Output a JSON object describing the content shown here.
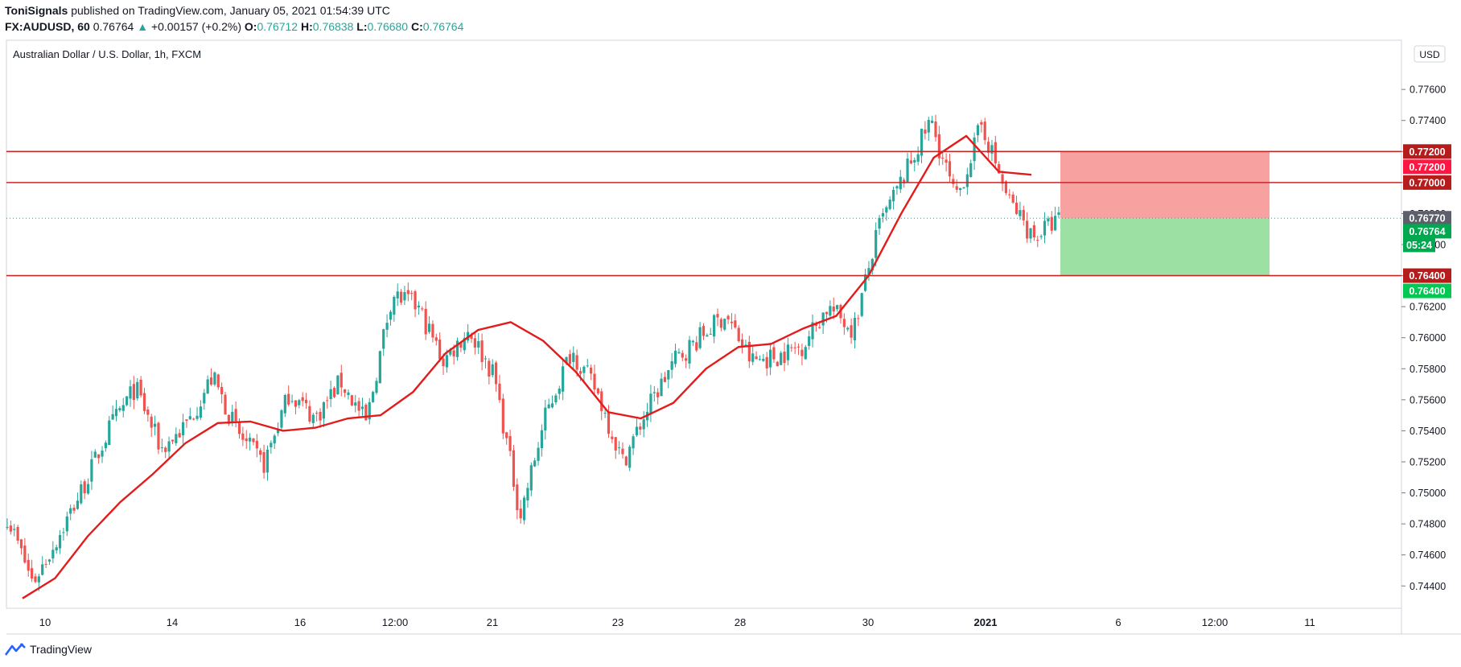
{
  "header": {
    "author": "ToniSignals",
    "published_text": "published on TradingView.com, January 05, 2021 01:54:39 UTC",
    "symbol": "FX:AUDUSD, 60",
    "last": "0.76764",
    "change_arrow": "▲",
    "change": "+0.00157 (+0.2%)",
    "o_label": "O:",
    "o_value": "0.76712",
    "h_label": "H:",
    "h_value": "0.76838",
    "l_label": "L:",
    "l_value": "0.76680",
    "c_label": "C:",
    "c_value": "0.76764"
  },
  "footer": {
    "brand": "TradingView",
    "logo_icon": "tradingview-logo-icon"
  },
  "colors": {
    "up": "#26a69a",
    "down": "#ef5350",
    "ma": "#e31b1b",
    "level_line": "#c62828",
    "stop_zone": "#f7a1a1",
    "target_zone": "#9de0a4",
    "axis_text": "#131722",
    "grid_border": "#d1d4dc"
  },
  "chart_data": {
    "type": "candlestick",
    "title": "Australian Dollar / U.S. Dollar, 1h, FXCM",
    "currency": "USD",
    "ylim": [
      0.7432,
      0.7776
    ],
    "y_ticks": [
      0.776,
      0.774,
      0.772,
      0.77,
      0.768,
      0.766,
      0.764,
      0.762,
      0.76,
      0.758,
      0.756,
      0.754,
      0.752,
      0.75,
      0.748,
      0.746,
      0.744
    ],
    "x_ticks": [
      "10",
      "14",
      "16",
      "12:00",
      "21",
      "23",
      "28",
      "30",
      "2021",
      "6",
      "12:00",
      "11"
    ],
    "x_ticks_bold": [
      "2021"
    ],
    "price_path": [
      [
        0.7485,
        0.7482
      ],
      [
        0.7442,
        0.7433
      ],
      [
        0.7472,
        0.7462
      ],
      [
        0.7505,
        0.7497
      ],
      [
        0.7542,
        0.7532
      ],
      [
        0.7568,
        0.7566
      ],
      [
        0.7528,
        0.7532
      ],
      [
        0.7544,
        0.7538
      ],
      [
        0.7575,
        0.7575
      ],
      [
        0.7538,
        0.7534
      ],
      [
        0.7518,
        0.7522
      ],
      [
        0.7565,
        0.7568
      ],
      [
        0.7548,
        0.7552
      ],
      [
        0.7572,
        0.7565
      ],
      [
        0.7545,
        0.7543
      ],
      [
        0.7628,
        0.7632
      ],
      [
        0.762,
        0.7614
      ],
      [
        0.7585,
        0.7592
      ],
      [
        0.7605,
        0.7609
      ],
      [
        0.7575,
        0.7568
      ],
      [
        0.7485,
        0.749
      ],
      [
        0.755,
        0.7558
      ],
      [
        0.7592,
        0.7596
      ],
      [
        0.7565,
        0.7556
      ],
      [
        0.752,
        0.7522
      ],
      [
        0.7555,
        0.756
      ],
      [
        0.7585,
        0.759
      ],
      [
        0.76,
        0.7602
      ],
      [
        0.7615,
        0.762
      ],
      [
        0.7585,
        0.7582
      ],
      [
        0.7588,
        0.7592
      ],
      [
        0.7595,
        0.76
      ],
      [
        0.762,
        0.7625
      ],
      [
        0.7605,
        0.7615
      ],
      [
        0.7672,
        0.768
      ],
      [
        0.7705,
        0.7698
      ],
      [
        0.774,
        0.7735
      ],
      [
        0.7688,
        0.7685
      ],
      [
        0.7738,
        0.7732
      ],
      [
        0.769,
        0.766
      ],
      [
        0.7665,
        0.767
      ],
      [
        0.7676,
        0.7676
      ]
    ],
    "ma_values": [
      0.7432,
      0.7445,
      0.7472,
      0.7494,
      0.7512,
      0.7532,
      0.7545,
      0.7546,
      0.754,
      0.7542,
      0.7548,
      0.755,
      0.7565,
      0.759,
      0.7605,
      0.761,
      0.7598,
      0.7578,
      0.7552,
      0.7548,
      0.7558,
      0.758,
      0.7594,
      0.7596,
      0.7606,
      0.7614,
      0.764,
      0.768,
      0.7716,
      0.773,
      0.7707,
      0.7705
    ],
    "levels": [
      0.772,
      0.77,
      0.764
    ],
    "current_price_line": 0.7677,
    "position": {
      "stop": 0.772,
      "entry": 0.7677,
      "target": 0.764
    },
    "price_labels": [
      {
        "text": "0.77200",
        "value": 0.772,
        "style": "level"
      },
      {
        "text": "0.77200",
        "value": 0.772,
        "style": "stop"
      },
      {
        "text": "0.77000",
        "value": 0.77,
        "style": "level"
      },
      {
        "text": "0.76770",
        "value": 0.7677,
        "style": "entry"
      },
      {
        "text": "0.76764",
        "value": 0.76764,
        "style": "last"
      },
      {
        "text": "05:24",
        "value": 0.76764,
        "style": "countdown"
      },
      {
        "text": "0.76400",
        "value": 0.764,
        "style": "level"
      },
      {
        "text": "0.76400",
        "value": 0.764,
        "style": "target"
      }
    ]
  }
}
